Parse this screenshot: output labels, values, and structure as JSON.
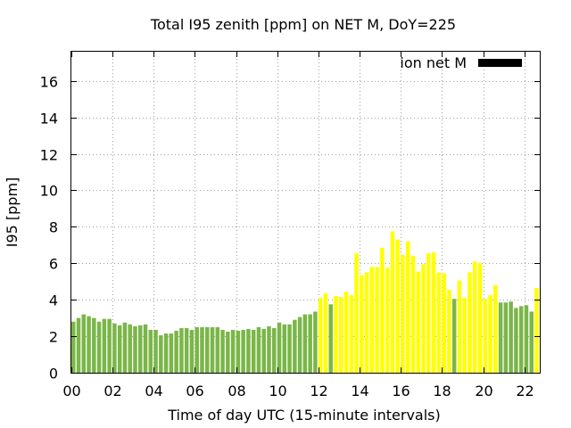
{
  "chart_data": {
    "type": "bar",
    "title": "Total I95 zenith [ppm] on NET M, DoY=225",
    "xlabel": "Time of day UTC (15-minute intervals)",
    "ylabel": "I95 [ppm]",
    "legend": {
      "label": "ion net M",
      "color": "#000000",
      "position": "top-right"
    },
    "xlim": [
      0,
      22.75
    ],
    "ylim": [
      0,
      17.6
    ],
    "x_ticks": [
      "00",
      "02",
      "04",
      "06",
      "08",
      "10",
      "12",
      "14",
      "16",
      "18",
      "20",
      "22"
    ],
    "y_ticks": [
      "0",
      "2",
      "4",
      "6",
      "8",
      "10",
      "12",
      "14",
      "16"
    ],
    "grid": true,
    "bar_interval_hours": 0.25,
    "colors": {
      "low": "#7ab648",
      "high": "#ffff00"
    },
    "values": [
      2.8,
      3.0,
      3.2,
      3.1,
      3.0,
      2.8,
      2.95,
      2.95,
      2.7,
      2.6,
      2.75,
      2.65,
      2.55,
      2.6,
      2.65,
      2.35,
      2.35,
      2.05,
      2.15,
      2.15,
      2.3,
      2.45,
      2.45,
      2.35,
      2.5,
      2.5,
      2.5,
      2.5,
      2.5,
      2.35,
      2.25,
      2.35,
      2.3,
      2.35,
      2.4,
      2.35,
      2.5,
      2.4,
      2.55,
      2.45,
      2.75,
      2.65,
      2.65,
      2.9,
      3.05,
      3.2,
      3.2,
      3.35,
      4.1,
      4.35,
      3.75,
      4.2,
      4.15,
      4.45,
      4.25,
      6.55,
      5.35,
      5.5,
      5.8,
      5.8,
      6.85,
      5.75,
      7.75,
      7.3,
      6.45,
      7.2,
      6.4,
      5.55,
      5.95,
      6.55,
      6.6,
      5.5,
      5.45,
      4.55,
      4.05,
      5.05,
      4.1,
      5.5,
      6.1,
      6.0,
      4.05,
      4.25,
      4.8,
      3.85,
      3.85,
      3.9,
      3.55,
      3.65,
      3.7,
      3.35,
      4.65
    ],
    "bar_colors": [
      "low",
      "low",
      "low",
      "low",
      "low",
      "low",
      "low",
      "low",
      "low",
      "low",
      "low",
      "low",
      "low",
      "low",
      "low",
      "low",
      "low",
      "low",
      "low",
      "low",
      "low",
      "low",
      "low",
      "low",
      "low",
      "low",
      "low",
      "low",
      "low",
      "low",
      "low",
      "low",
      "low",
      "low",
      "low",
      "low",
      "low",
      "low",
      "low",
      "low",
      "low",
      "low",
      "low",
      "low",
      "low",
      "low",
      "low",
      "low",
      "high",
      "high",
      "low",
      "high",
      "high",
      "high",
      "high",
      "high",
      "high",
      "high",
      "high",
      "high",
      "high",
      "high",
      "high",
      "high",
      "high",
      "high",
      "high",
      "high",
      "high",
      "high",
      "high",
      "high",
      "high",
      "high",
      "low",
      "high",
      "high",
      "high",
      "high",
      "high",
      "high",
      "high",
      "high",
      "low",
      "low",
      "low",
      "low",
      "low",
      "low",
      "low",
      "high"
    ]
  }
}
